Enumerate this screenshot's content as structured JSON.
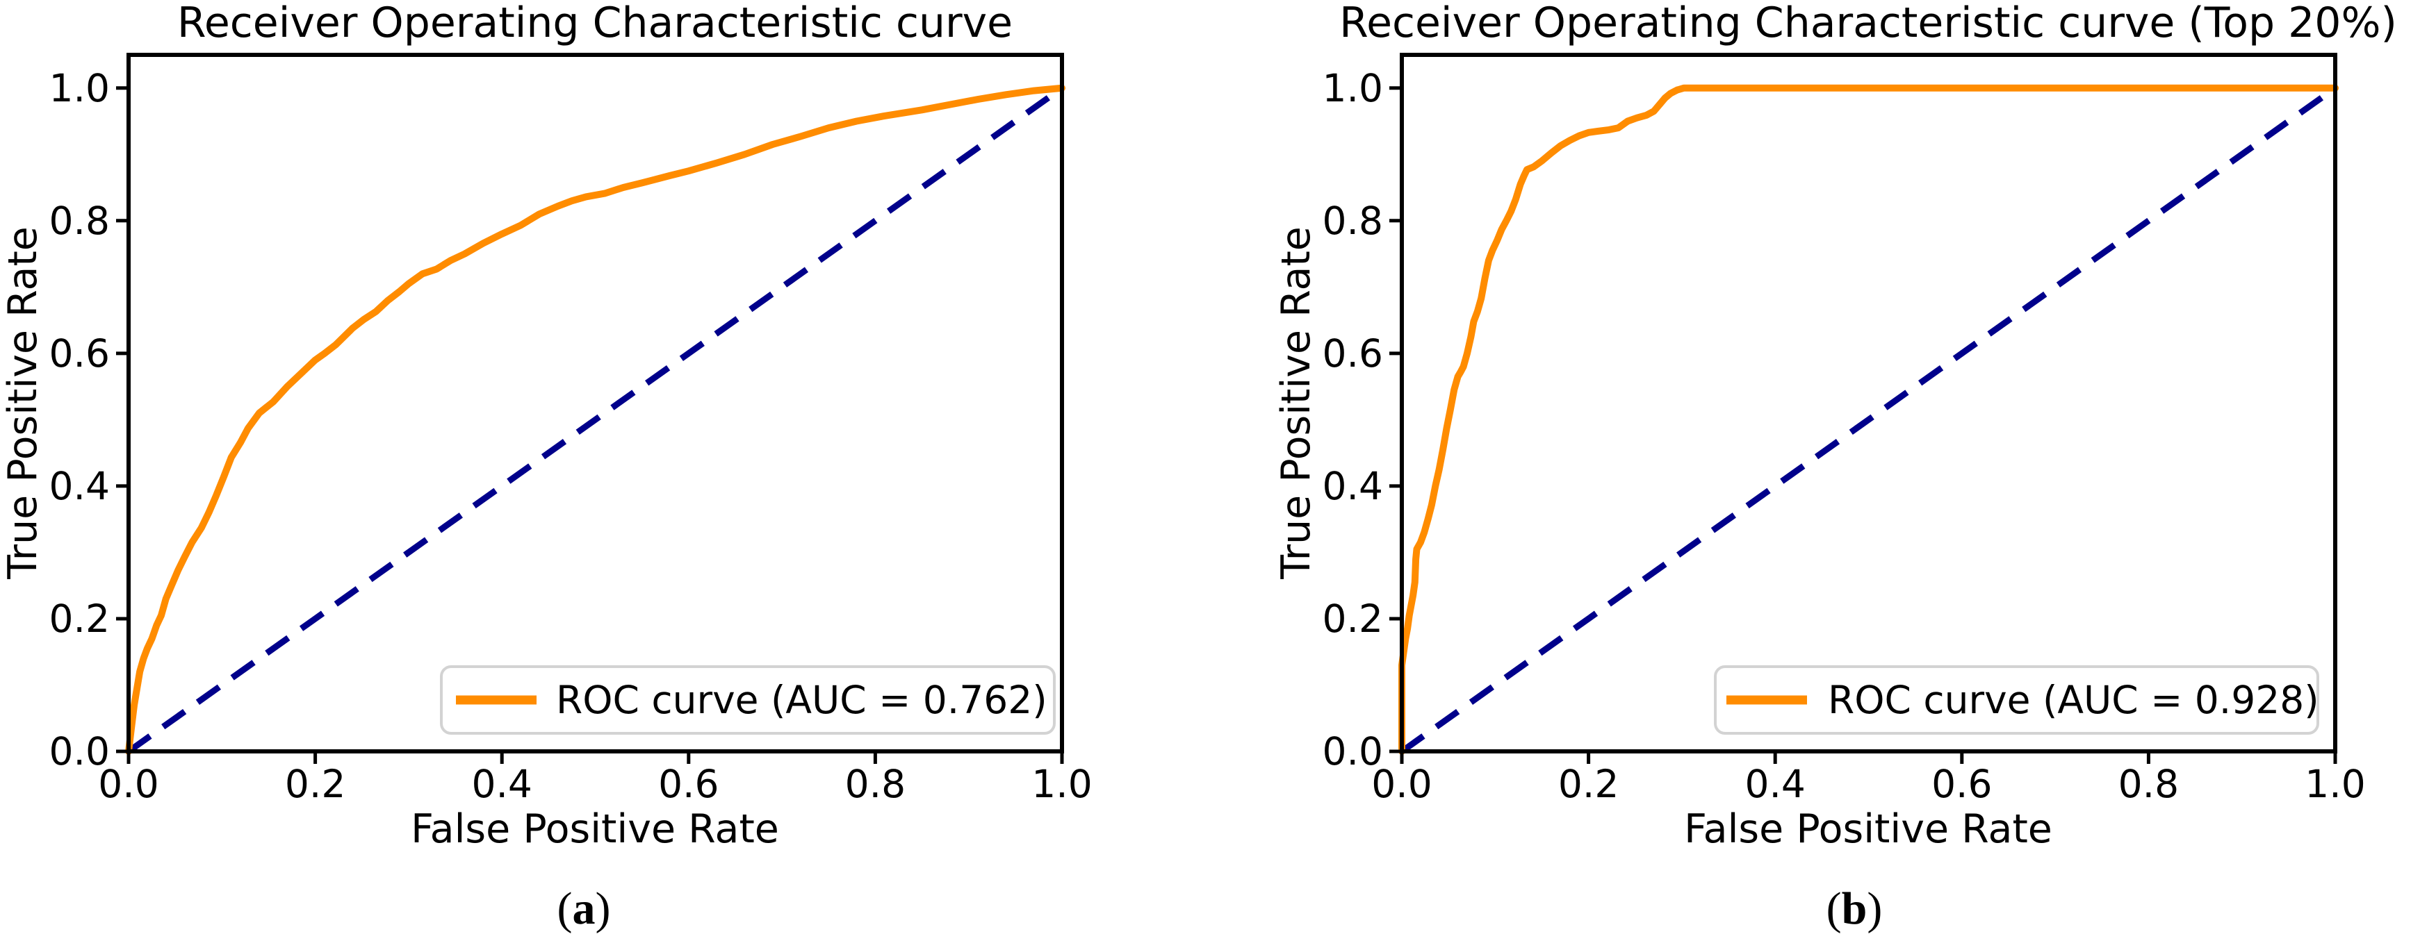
{
  "figure": {
    "background": "#ffffff",
    "panel_count": 2
  },
  "captions": {
    "a": {
      "open": "(",
      "letter": "a",
      "close": ")"
    },
    "b": {
      "open": "(",
      "letter": "b",
      "close": ")"
    }
  },
  "chart_data": [
    {
      "type": "line",
      "title": "Receiver Operating Characteristic curve",
      "xlabel": "False Positive Rate",
      "ylabel": "True Positive Rate",
      "xlim": [
        0.0,
        1.0
      ],
      "ylim": [
        0.0,
        1.05
      ],
      "grid": false,
      "x_tick_values": [
        0.0,
        0.2,
        0.4,
        0.6,
        0.8,
        1.0
      ],
      "x_tick_labels": [
        "0.0",
        "0.2",
        "0.4",
        "0.6",
        "0.8",
        "1.0"
      ],
      "y_tick_values": [
        0.0,
        0.2,
        0.4,
        0.6,
        0.8,
        1.0
      ],
      "y_tick_labels": [
        "0.0",
        "0.2",
        "0.4",
        "0.6",
        "0.8",
        "1.0"
      ],
      "auc": 0.762,
      "legend": {
        "label": "ROC curve (AUC = 0.762)",
        "position": "lower right"
      },
      "colors": {
        "roc": "#ff8c00",
        "chance": "#00008b",
        "legend_border": "#d3d3d3"
      },
      "series": [
        {
          "name": "ROC curve",
          "style": "solid",
          "color": "#ff8c00",
          "points": [
            [
              0,
              0
            ],
            [
              0.003,
              0.035
            ],
            [
              0.006,
              0.07
            ],
            [
              0.009,
              0.095
            ],
            [
              0.012,
              0.12
            ],
            [
              0.016,
              0.14
            ],
            [
              0.02,
              0.155
            ],
            [
              0.025,
              0.17
            ],
            [
              0.03,
              0.19
            ],
            [
              0.035,
              0.205
            ],
            [
              0.04,
              0.23
            ],
            [
              0.046,
              0.25
            ],
            [
              0.053,
              0.273
            ],
            [
              0.06,
              0.293
            ],
            [
              0.068,
              0.315
            ],
            [
              0.078,
              0.337
            ],
            [
              0.086,
              0.36
            ],
            [
              0.094,
              0.386
            ],
            [
              0.102,
              0.414
            ],
            [
              0.11,
              0.443
            ],
            [
              0.12,
              0.466
            ],
            [
              0.128,
              0.487
            ],
            [
              0.14,
              0.51
            ],
            [
              0.155,
              0.527
            ],
            [
              0.17,
              0.55
            ],
            [
              0.185,
              0.57
            ],
            [
              0.2,
              0.59
            ],
            [
              0.21,
              0.6
            ],
            [
              0.222,
              0.613
            ],
            [
              0.24,
              0.638
            ],
            [
              0.252,
              0.651
            ],
            [
              0.265,
              0.663
            ],
            [
              0.278,
              0.68
            ],
            [
              0.29,
              0.693
            ],
            [
              0.3,
              0.705
            ],
            [
              0.315,
              0.72
            ],
            [
              0.33,
              0.727
            ],
            [
              0.345,
              0.74
            ],
            [
              0.36,
              0.75
            ],
            [
              0.38,
              0.766
            ],
            [
              0.4,
              0.78
            ],
            [
              0.42,
              0.793
            ],
            [
              0.44,
              0.81
            ],
            [
              0.46,
              0.822
            ],
            [
              0.475,
              0.83
            ],
            [
              0.49,
              0.836
            ],
            [
              0.51,
              0.841
            ],
            [
              0.53,
              0.85
            ],
            [
              0.55,
              0.857
            ],
            [
              0.58,
              0.868
            ],
            [
              0.6,
              0.875
            ],
            [
              0.63,
              0.887
            ],
            [
              0.66,
              0.9
            ],
            [
              0.69,
              0.915
            ],
            [
              0.72,
              0.927
            ],
            [
              0.75,
              0.94
            ],
            [
              0.78,
              0.95
            ],
            [
              0.81,
              0.958
            ],
            [
              0.85,
              0.967
            ],
            [
              0.88,
              0.975
            ],
            [
              0.91,
              0.983
            ],
            [
              0.94,
              0.99
            ],
            [
              0.97,
              0.996
            ],
            [
              1,
              1
            ]
          ]
        },
        {
          "name": "Chance diagonal",
          "style": "dashed",
          "color": "#00008b",
          "points": [
            [
              0,
              0
            ],
            [
              1,
              1
            ]
          ]
        }
      ]
    },
    {
      "type": "line",
      "title": "Receiver Operating Characteristic curve (Top 20%)",
      "xlabel": "False Positive Rate",
      "ylabel": "True Positive Rate",
      "xlim": [
        0.0,
        1.0
      ],
      "ylim": [
        0.0,
        1.05
      ],
      "grid": false,
      "x_tick_values": [
        0.0,
        0.2,
        0.4,
        0.6,
        0.8,
        1.0
      ],
      "x_tick_labels": [
        "0.0",
        "0.2",
        "0.4",
        "0.6",
        "0.8",
        "1.0"
      ],
      "y_tick_values": [
        0.0,
        0.2,
        0.4,
        0.6,
        0.8,
        1.0
      ],
      "y_tick_labels": [
        "0.0",
        "0.2",
        "0.4",
        "0.6",
        "0.8",
        "1.0"
      ],
      "auc": 0.928,
      "legend": {
        "label": "ROC curve (AUC = 0.928)",
        "position": "lower right"
      },
      "colors": {
        "roc": "#ff8c00",
        "chance": "#00008b",
        "legend_border": "#d3d3d3"
      },
      "series": [
        {
          "name": "ROC curve",
          "style": "solid",
          "color": "#ff8c00",
          "points": [
            [
              0,
              0
            ],
            [
              0,
              0.13
            ],
            [
              0.002,
              0.15
            ],
            [
              0.004,
              0.17
            ],
            [
              0.006,
              0.185
            ],
            [
              0.008,
              0.205
            ],
            [
              0.01,
              0.22
            ],
            [
              0.012,
              0.235
            ],
            [
              0.014,
              0.255
            ],
            [
              0.015,
              0.29
            ],
            [
              0.016,
              0.305
            ],
            [
              0.02,
              0.315
            ],
            [
              0.024,
              0.33
            ],
            [
              0.028,
              0.35
            ],
            [
              0.032,
              0.372
            ],
            [
              0.036,
              0.4
            ],
            [
              0.04,
              0.425
            ],
            [
              0.044,
              0.455
            ],
            [
              0.048,
              0.487
            ],
            [
              0.052,
              0.515
            ],
            [
              0.056,
              0.545
            ],
            [
              0.06,
              0.565
            ],
            [
              0.063,
              0.572
            ],
            [
              0.066,
              0.58
            ],
            [
              0.07,
              0.6
            ],
            [
              0.074,
              0.625
            ],
            [
              0.077,
              0.648
            ],
            [
              0.081,
              0.663
            ],
            [
              0.085,
              0.683
            ],
            [
              0.089,
              0.713
            ],
            [
              0.093,
              0.74
            ],
            [
              0.097,
              0.755
            ],
            [
              0.102,
              0.77
            ],
            [
              0.107,
              0.787
            ],
            [
              0.112,
              0.8
            ],
            [
              0.117,
              0.814
            ],
            [
              0.122,
              0.832
            ],
            [
              0.127,
              0.855
            ],
            [
              0.131,
              0.868
            ],
            [
              0.134,
              0.877
            ],
            [
              0.141,
              0.881
            ],
            [
              0.15,
              0.89
            ],
            [
              0.16,
              0.902
            ],
            [
              0.17,
              0.913
            ],
            [
              0.18,
              0.921
            ],
            [
              0.19,
              0.928
            ],
            [
              0.2,
              0.933
            ],
            [
              0.21,
              0.935
            ],
            [
              0.222,
              0.937
            ],
            [
              0.232,
              0.94
            ],
            [
              0.242,
              0.95
            ],
            [
              0.252,
              0.955
            ],
            [
              0.262,
              0.959
            ],
            [
              0.27,
              0.965
            ],
            [
              0.276,
              0.975
            ],
            [
              0.282,
              0.985
            ],
            [
              0.288,
              0.992
            ],
            [
              0.295,
              0.997
            ],
            [
              0.302,
              1
            ],
            [
              0.32,
              1
            ],
            [
              1,
              1
            ]
          ]
        },
        {
          "name": "Chance diagonal",
          "style": "dashed",
          "color": "#00008b",
          "points": [
            [
              0,
              0
            ],
            [
              1,
              1
            ]
          ]
        }
      ]
    }
  ]
}
